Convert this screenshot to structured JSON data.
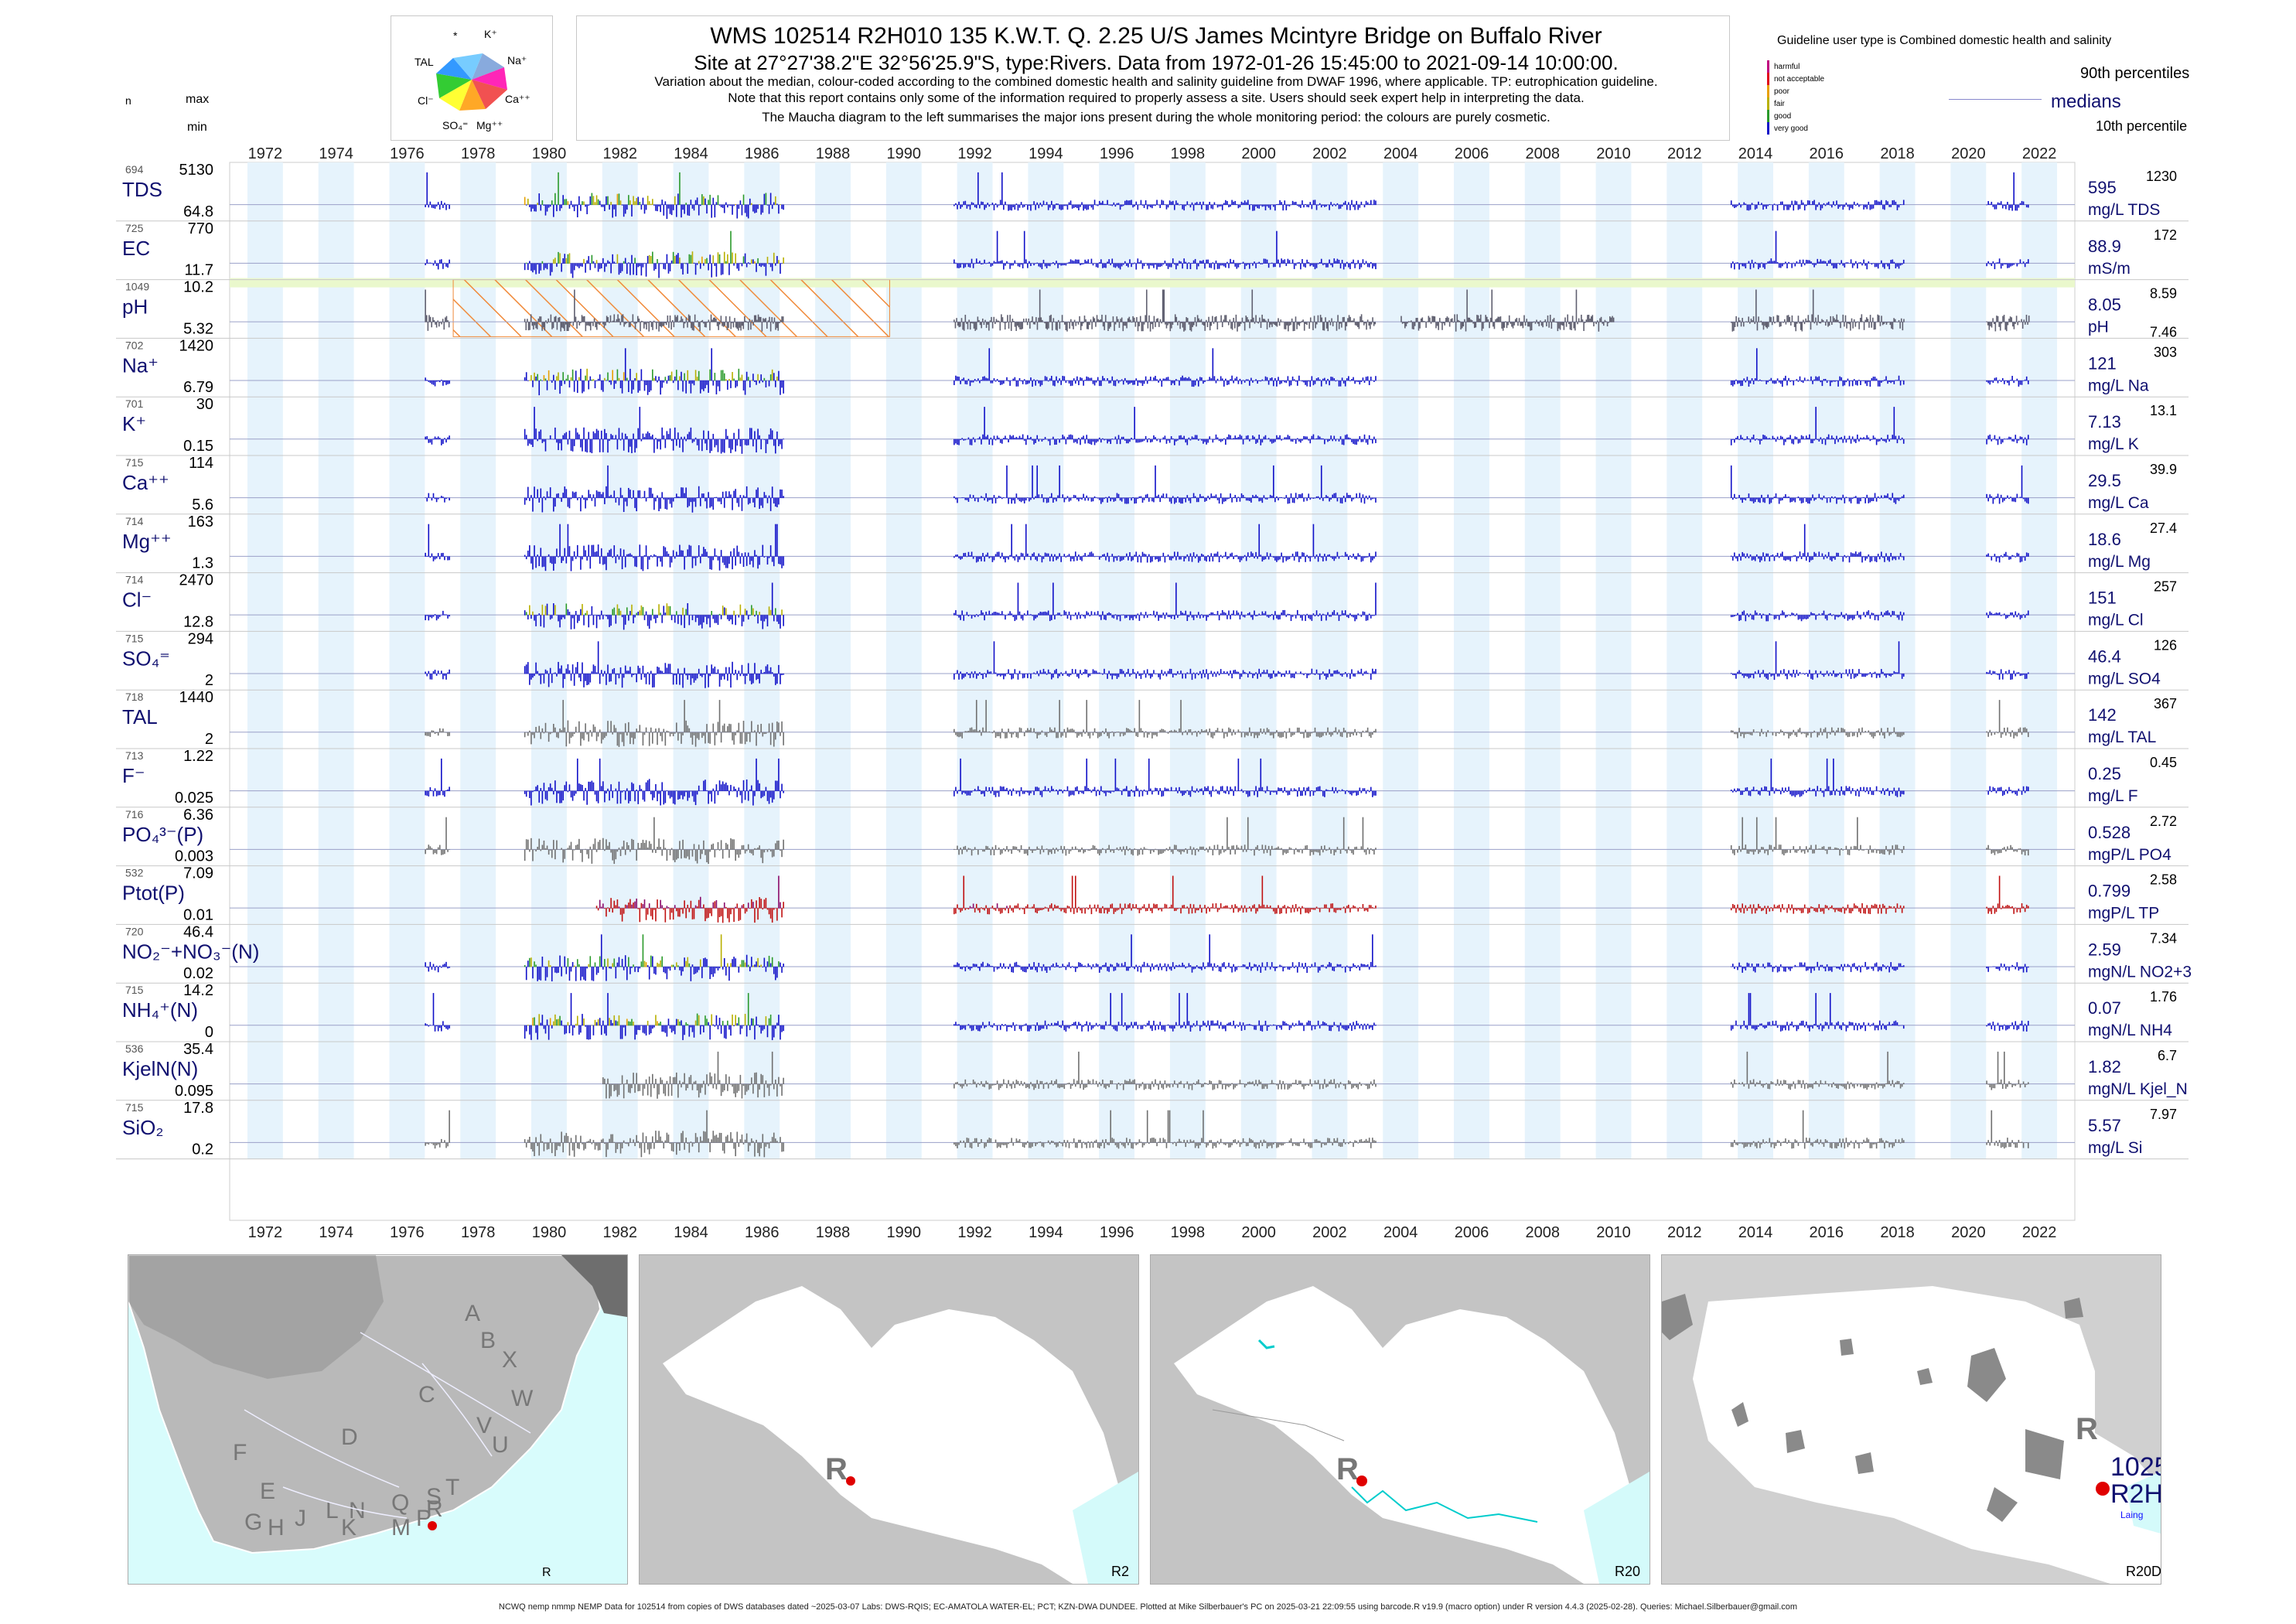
{
  "header": {
    "title": "WMS 102514 R2H010 135 K.W.T. Q. 2.25 U/S James Mcintyre Bridge on Buffalo River",
    "subtitle": "Site at 27°27'38.2\"E 32°56'25.9\"S, type:Rivers.  Data from 1972-01-26 15:45:00 to 2021-09-14 10:00:00.",
    "note1": "Variation about the median,  colour-coded according to the combined domestic health and salinity guideline from DWAF 1996, where applicable. TP: eutrophication guideline.",
    "note2": "Note that this report contains only some of the information required to properly assess a site. Users should seek expert help in interpreting the data.",
    "note3": "The Maucha diagram to the left summarises the major ions present during the whole monitoring period: the colours are purely cosmetic."
  },
  "left_header": {
    "n": "n",
    "max": "max",
    "min": "min"
  },
  "maucha": {
    "labels": [
      "*",
      "K⁺",
      "Na⁺",
      "Ca⁺⁺",
      "Mg⁺⁺",
      "SO₄⁼",
      "Cl⁻",
      "TAL"
    ]
  },
  "guideline": {
    "title": "Guideline user type is Combined domestic health and salinity",
    "classes": [
      {
        "label": "harmful",
        "color": "#c0007f"
      },
      {
        "label": "not acceptable",
        "color": "#e0001a"
      },
      {
        "label": "poor",
        "color": "#e8a000"
      },
      {
        "label": "fair",
        "color": "#b8b000"
      },
      {
        "label": "good",
        "color": "#2a9a2a"
      },
      {
        "label": "very good",
        "color": "#1010c8"
      }
    ],
    "p90": "90th percentiles",
    "medians": "medians",
    "p10": "10th percentile"
  },
  "year_ticks": [
    "1972",
    "1974",
    "1976",
    "1978",
    "1980",
    "1982",
    "1984",
    "1986",
    "1988",
    "1990",
    "1992",
    "1994",
    "1996",
    "1998",
    "2000",
    "2002",
    "2004",
    "2006",
    "2008",
    "2010",
    "2012",
    "2014",
    "2016",
    "2018",
    "2020",
    "2022"
  ],
  "chart_data": {
    "type": "bar",
    "x_axis": "year",
    "xlim": [
      1971.0,
      2023.0
    ],
    "grid": true,
    "variables": [
      {
        "key": "tds",
        "name": "TDS",
        "n": "694",
        "max": "5130",
        "min": "64.8",
        "median": "595",
        "p90": "1230",
        "p10": "",
        "unit": "mg/L TDS",
        "color": "#1010c8",
        "guideline_colored": true
      },
      {
        "key": "ec",
        "name": "EC",
        "n": "725",
        "max": "770",
        "min": "11.7",
        "median": "88.9",
        "p90": "172",
        "p10": "",
        "unit": "mS/m",
        "color": "#1010c8",
        "guideline_colored": true
      },
      {
        "key": "ph",
        "name": "pH",
        "n": "1049",
        "max": "10.2",
        "min": "5.32",
        "median": "8.05",
        "p90": "8.59",
        "p10": "7.46",
        "unit": "pH",
        "color": "#606070",
        "guideline_colored": false
      },
      {
        "key": "na",
        "name": "Na⁺",
        "n": "702",
        "max": "1420",
        "min": "6.79",
        "median": "121",
        "p90": "303",
        "p10": "",
        "unit": "mg/L Na",
        "color": "#1010c8",
        "guideline_colored": true
      },
      {
        "key": "k",
        "name": "K⁺",
        "n": "701",
        "max": "30",
        "min": "0.15",
        "median": "7.13",
        "p90": "13.1",
        "p10": "",
        "unit": "mg/L K",
        "color": "#1010c8",
        "guideline_colored": false
      },
      {
        "key": "ca",
        "name": "Ca⁺⁺",
        "n": "715",
        "max": "114",
        "min": "5.6",
        "median": "29.5",
        "p90": "39.9",
        "p10": "",
        "unit": "mg/L Ca",
        "color": "#1010c8",
        "guideline_colored": false
      },
      {
        "key": "mg",
        "name": "Mg⁺⁺",
        "n": "714",
        "max": "163",
        "min": "1.3",
        "median": "18.6",
        "p90": "27.4",
        "p10": "",
        "unit": "mg/L Mg",
        "color": "#1010c8",
        "guideline_colored": false
      },
      {
        "key": "cl",
        "name": "Cl⁻",
        "n": "714",
        "max": "2470",
        "min": "12.8",
        "median": "151",
        "p90": "257",
        "p10": "",
        "unit": "mg/L Cl",
        "color": "#1010c8",
        "guideline_colored": true
      },
      {
        "key": "so4",
        "name": "SO₄⁼",
        "n": "715",
        "max": "294",
        "min": "2",
        "median": "46.4",
        "p90": "126",
        "p10": "",
        "unit": "mg/L SO4",
        "color": "#1010c8",
        "guideline_colored": false
      },
      {
        "key": "tal",
        "name": "TAL",
        "n": "718",
        "max": "1440",
        "min": "2",
        "median": "142",
        "p90": "367",
        "p10": "",
        "unit": "mg/L TAL",
        "color": "#707070",
        "guideline_colored": false
      },
      {
        "key": "f",
        "name": "F⁻",
        "n": "713",
        "max": "1.22",
        "min": "0.025",
        "median": "0.25",
        "p90": "0.45",
        "p10": "",
        "unit": "mg/L F",
        "color": "#1010c8",
        "guideline_colored": false
      },
      {
        "key": "po4",
        "name": "PO₄³⁻(P)",
        "n": "716",
        "max": "6.36",
        "min": "0.003",
        "median": "0.528",
        "p90": "2.72",
        "p10": "",
        "unit": "mgP/L PO4",
        "color": "#707070",
        "guideline_colored": false
      },
      {
        "key": "tp",
        "name": "Ptot(P)",
        "n": "532",
        "max": "7.09",
        "min": "0.01",
        "median": "0.799",
        "p90": "2.58",
        "p10": "",
        "unit": "mgP/L TP",
        "color": "#c01010",
        "guideline_colored": true
      },
      {
        "key": "no3",
        "name": "NO₂⁻+NO₃⁻(N)",
        "n": "720",
        "max": "46.4",
        "min": "0.02",
        "median": "2.59",
        "p90": "7.34",
        "p10": "",
        "unit": "mgN/L NO2+3",
        "color": "#1010c8",
        "guideline_colored": true
      },
      {
        "key": "nh4",
        "name": "NH₄⁺(N)",
        "n": "715",
        "max": "14.2",
        "min": "0",
        "median": "0.07",
        "p90": "1.76",
        "p10": "",
        "unit": "mgN/L NH4",
        "color": "#1010c8",
        "guideline_colored": true
      },
      {
        "key": "kjel",
        "name": "KjelN(N)",
        "n": "536",
        "max": "35.4",
        "min": "0.095",
        "median": "1.82",
        "p90": "6.7",
        "p10": "",
        "unit": "mgN/L Kjel_N",
        "color": "#707070",
        "guideline_colored": false
      },
      {
        "key": "sio2",
        "name": "SiO₂",
        "n": "715",
        "max": "17.8",
        "min": "0.2",
        "median": "5.57",
        "p90": "7.97",
        "p10": "",
        "unit": "mg/L Si",
        "color": "#707070",
        "guideline_colored": false
      }
    ],
    "sampling_periods": [
      [
        1976.5,
        1977.2
      ],
      [
        1979.3,
        1986.6
      ],
      [
        1991.4,
        2003.3
      ],
      [
        2004.0,
        2010.0
      ],
      [
        2013.3,
        2018.2
      ],
      [
        2020.5,
        2021.7
      ]
    ]
  },
  "maps": [
    {
      "key": "r",
      "caption": "R",
      "letters": [
        "A",
        "B",
        "X",
        "C",
        "W",
        "D",
        "V",
        "U",
        "F",
        "E",
        "T",
        "G",
        "H",
        "J",
        "L",
        "N",
        "Q",
        "S",
        "K",
        "M",
        "P",
        "R"
      ]
    },
    {
      "key": "r2",
      "caption": "R2",
      "label": "R"
    },
    {
      "key": "r20",
      "caption": "R20",
      "label": "R"
    },
    {
      "key": "r20d",
      "caption": "R20D",
      "label": "R",
      "site1": "1025",
      "site2": "R2H",
      "site3": "Laing"
    }
  ],
  "footer": "NCWQ nemp nmmp NEMP Data for 102514 from copies of DWS databases dated ~2025-03-07 Labs: DWS-RQIS; EC-AMATOLA WATER-EL; PCT; KZN-DWA DUNDEE.  Plotted at Mike Silberbauer's PC on 2025-03-21 22:09:55 using barcode.R v19.9 (macro option) under R version 4.4.3 (2025-02-28). Queries: Michael.Silberbauer@gmail.com"
}
